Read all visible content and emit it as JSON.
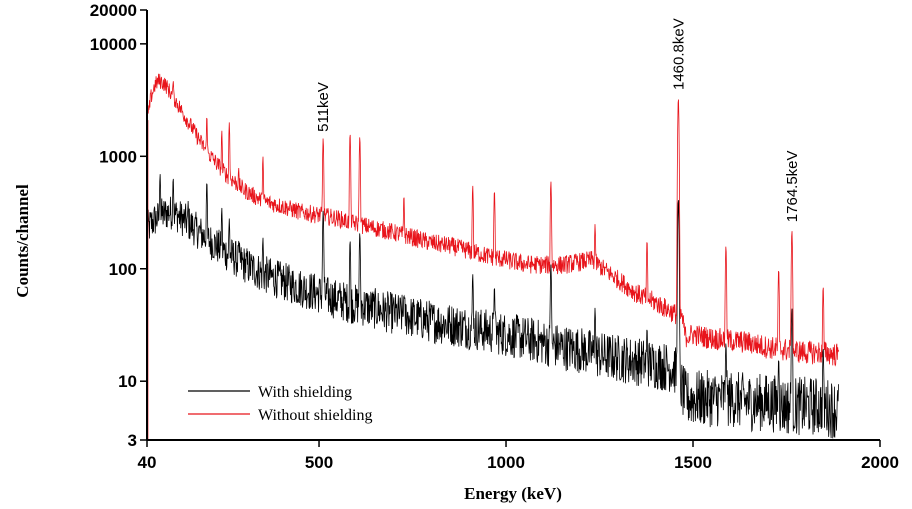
{
  "chart_data": {
    "type": "line",
    "title": "",
    "xlabel": "Energy (keV)",
    "ylabel": "Counts/channel",
    "xlim": [
      40,
      2000
    ],
    "ylim": [
      3,
      20000
    ],
    "y_scale": "log",
    "grid": false,
    "legend_position": "bottom-left",
    "x_ticks": [
      40,
      500,
      1000,
      1500,
      2000
    ],
    "x_tick_labels": [
      "40",
      "500",
      "1000",
      "1500",
      "2000"
    ],
    "y_ticks": [
      3,
      10,
      100,
      1000,
      10000,
      20000
    ],
    "y_tick_labels": [
      "3",
      "10",
      "100",
      "1000",
      "10000",
      "20000"
    ],
    "colors": {
      "with_shielding": "#000000",
      "without_shielding": "#e8141b"
    },
    "annotations": [
      {
        "text": "511keV",
        "x": 511,
        "y": 1400
      },
      {
        "text": "1460.8keV",
        "x": 1460.8,
        "y": 3300
      },
      {
        "text": "1764.5keV",
        "x": 1764.5,
        "y": 220
      }
    ],
    "series": [
      {
        "name": "With shielding",
        "color": "#000000",
        "x": [
          40,
          45,
          50,
          60,
          80,
          100,
          120,
          140,
          160,
          180,
          200,
          250,
          300,
          350,
          400,
          450,
          500,
          550,
          600,
          650,
          700,
          750,
          800,
          850,
          900,
          950,
          1000,
          1050,
          1100,
          1150,
          1200,
          1250,
          1300,
          1350,
          1400,
          1450,
          1480,
          1500,
          1550,
          1600,
          1650,
          1700,
          1750,
          1800,
          1850,
          1890
        ],
        "values": [
          240,
          230,
          250,
          270,
          300,
          320,
          300,
          270,
          240,
          210,
          185,
          140,
          110,
          90,
          78,
          68,
          60,
          53,
          48,
          44,
          40,
          37,
          34,
          32,
          30,
          28,
          26,
          24,
          22,
          20,
          19,
          17,
          16,
          15,
          14,
          13,
          7,
          7,
          7,
          7,
          6.5,
          6.5,
          6,
          6,
          6,
          5.5
        ],
        "peaks": [
          [
            75,
            700
          ],
          [
            110,
            650
          ],
          [
            150,
            400
          ],
          [
            200,
            600
          ],
          [
            240,
            350
          ],
          [
            260,
            280
          ],
          [
            285,
            180
          ],
          [
            350,
            190
          ],
          [
            511,
            330
          ],
          [
            583,
            180
          ],
          [
            609,
            210
          ],
          [
            727,
            60
          ],
          [
            911,
            90
          ],
          [
            969,
            70
          ],
          [
            1120,
            110
          ],
          [
            1238,
            45
          ],
          [
            1377,
            30
          ],
          [
            1460.8,
            420
          ],
          [
            1588,
            22
          ],
          [
            1729,
            16
          ],
          [
            1764.5,
            45
          ],
          [
            1848,
            20
          ]
        ]
      },
      {
        "name": "Without shielding",
        "color": "#e8141b",
        "x": [
          40,
          45,
          50,
          60,
          70,
          80,
          90,
          100,
          120,
          140,
          160,
          180,
          200,
          250,
          300,
          350,
          400,
          450,
          500,
          550,
          600,
          650,
          700,
          750,
          800,
          850,
          900,
          950,
          1000,
          1050,
          1100,
          1150,
          1200,
          1230,
          1260,
          1300,
          1350,
          1400,
          1450,
          1470,
          1480,
          1500,
          1550,
          1600,
          1650,
          1700,
          1750,
          1800,
          1850,
          1890
        ],
        "values": [
          2100,
          2500,
          3300,
          4200,
          4700,
          4600,
          4300,
          3800,
          3000,
          2300,
          1800,
          1400,
          1100,
          700,
          500,
          400,
          360,
          320,
          300,
          280,
          250,
          230,
          210,
          190,
          170,
          160,
          145,
          130,
          120,
          110,
          108,
          108,
          115,
          120,
          100,
          80,
          60,
          50,
          40,
          38,
          25,
          26,
          24,
          23,
          22,
          20,
          19,
          18,
          18,
          17
        ],
        "peaks": [
          [
            75,
            3200
          ],
          [
            110,
            4800
          ],
          [
            130,
            2300
          ],
          [
            150,
            1100
          ],
          [
            200,
            2300
          ],
          [
            240,
            1700
          ],
          [
            260,
            2000
          ],
          [
            285,
            800
          ],
          [
            350,
            1000
          ],
          [
            511,
            1450
          ],
          [
            583,
            1600
          ],
          [
            609,
            1500
          ],
          [
            727,
            450
          ],
          [
            911,
            550
          ],
          [
            969,
            500
          ],
          [
            1120,
            600
          ],
          [
            1238,
            250
          ],
          [
            1377,
            180
          ],
          [
            1460.8,
            3300
          ],
          [
            1588,
            160
          ],
          [
            1729,
            100
          ],
          [
            1764.5,
            220
          ],
          [
            1848,
            70
          ]
        ]
      }
    ]
  }
}
